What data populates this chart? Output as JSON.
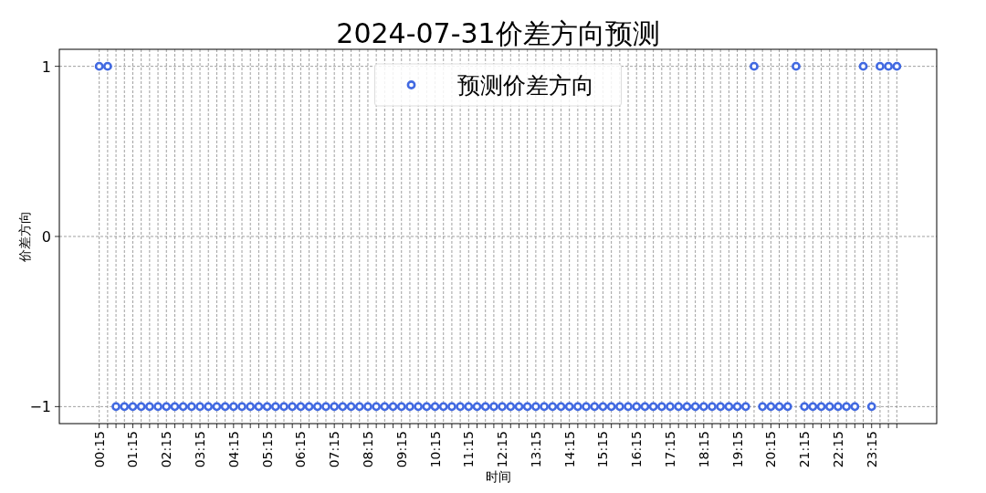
{
  "chart_data": {
    "type": "scatter",
    "title": "2024-07-31价差方向预测",
    "xlabel": "时间",
    "ylabel": "价差方向",
    "categories": [
      "00:15",
      null,
      null,
      null,
      "01:15",
      null,
      null,
      null,
      "02:15",
      null,
      null,
      null,
      "03:15",
      null,
      null,
      null,
      "04:15",
      null,
      null,
      null,
      "05:15",
      null,
      null,
      null,
      "06:15",
      null,
      null,
      null,
      "07:15",
      null,
      null,
      null,
      "08:15",
      null,
      null,
      null,
      "09:15",
      null,
      null,
      null,
      "10:15",
      null,
      null,
      null,
      "11:15",
      null,
      null,
      null,
      "12:15",
      null,
      null,
      null,
      "13:15",
      null,
      null,
      null,
      "14:15",
      null,
      null,
      null,
      "15:15",
      null,
      null,
      null,
      "16:15",
      null,
      null,
      null,
      "17:15",
      null,
      null,
      null,
      "18:15",
      null,
      null,
      null,
      "19:15",
      null,
      null,
      null,
      "20:15",
      null,
      null,
      null,
      "21:15",
      null,
      null,
      null,
      "22:15",
      null,
      null,
      null,
      "23:15",
      null,
      null,
      null
    ],
    "series": [
      {
        "name": "预测价差方向",
        "color": "#4169e1",
        "values": [
          1,
          1,
          -1,
          -1,
          -1,
          -1,
          -1,
          -1,
          -1,
          -1,
          -1,
          -1,
          -1,
          -1,
          -1,
          -1,
          -1,
          -1,
          -1,
          -1,
          -1,
          -1,
          -1,
          -1,
          -1,
          -1,
          -1,
          -1,
          -1,
          -1,
          -1,
          -1,
          -1,
          -1,
          -1,
          -1,
          -1,
          -1,
          -1,
          -1,
          -1,
          -1,
          -1,
          -1,
          -1,
          -1,
          -1,
          -1,
          -1,
          -1,
          -1,
          -1,
          -1,
          -1,
          -1,
          -1,
          -1,
          -1,
          -1,
          -1,
          -1,
          -1,
          -1,
          -1,
          -1,
          -1,
          -1,
          -1,
          -1,
          -1,
          -1,
          -1,
          -1,
          -1,
          -1,
          -1,
          -1,
          -1,
          1,
          -1,
          -1,
          -1,
          -1,
          1,
          -1,
          -1,
          -1,
          -1,
          -1,
          -1,
          -1,
          1,
          -1,
          1,
          1,
          1
        ]
      }
    ],
    "ylim": [
      -1.1,
      1.1
    ],
    "yticks": [
      {
        "value": -1,
        "label": "−1"
      },
      0,
      1
    ],
    "grid": true,
    "legend": "top",
    "marker": "circle"
  }
}
